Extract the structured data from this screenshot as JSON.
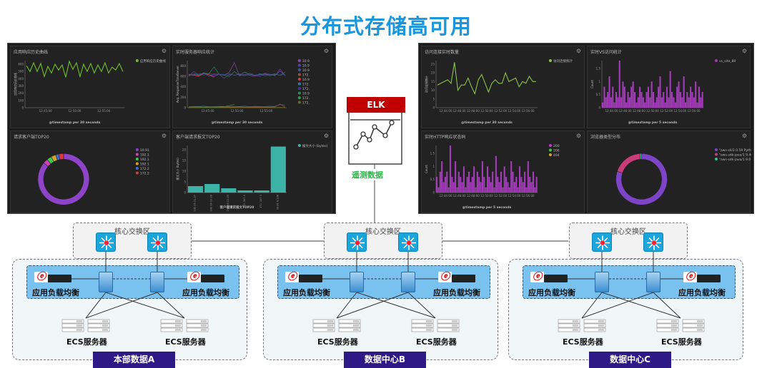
{
  "title": "分布式存储高可用",
  "elk": {
    "label": "ELK",
    "caption": "遥测数据"
  },
  "colors": {
    "title": "#1a96dc",
    "elk": "#c00000",
    "caption": "#2db34a",
    "dc_label": "#2e1a87",
    "band": "#79c1ef",
    "switch": "#1aa6da"
  },
  "dashboards": [
    {
      "panels": [
        {
          "title": "应用响应历史曲线",
          "type": "line",
          "ylabel": "应用响应历史曲线",
          "xlabel": "@timestamp per 30 seconds",
          "yticks": [
            0,
            100,
            200,
            300,
            400,
            500,
            600
          ],
          "xticks": [
            "12:45:00",
            "12:50:00",
            "12:55:00"
          ],
          "ymax": 650,
          "legend": [
            {
              "label": "应用响应历史曲线",
              "color": "#6fbf2a"
            }
          ],
          "series": [
            {
              "color": "#6fbf2a",
              "values": [
                580,
                500,
                620,
                500,
                610,
                430,
                570,
                480,
                600,
                520,
                590,
                420,
                640,
                530,
                620,
                430,
                600,
                500,
                610,
                480,
                590,
                500,
                620,
                480,
                560,
                520,
                610,
                500
              ]
            }
          ]
        },
        {
          "title": "实时服务器响应统计",
          "type": "multiline",
          "ylabel": "Avg. ResponseTimeServer",
          "xlabel": "@timestamp per 30 seconds",
          "yticks": [
            0,
            200,
            400,
            600,
            800
          ],
          "xticks": [
            "12:45:00",
            "12:50:00",
            "12:55:00"
          ],
          "ymax": 900,
          "legend": [
            {
              "label": "10.9",
              "color": "#8e44ad"
            },
            {
              "label": "10.9",
              "color": "#5b3fa8"
            },
            {
              "label": "10.9",
              "color": "#3d5aa8"
            },
            {
              "label": "172.",
              "color": "#a0522d"
            },
            {
              "label": "10.9",
              "color": "#e53935"
            },
            {
              "label": "172.",
              "color": "#2e7fa8"
            },
            {
              "label": "172.",
              "color": "#3a3a9a"
            },
            {
              "label": "10.9",
              "color": "#2e8b57"
            },
            {
              "label": "172.",
              "color": "#3c9a3c"
            },
            {
              "label": "172.",
              "color": "#6b6b2a"
            }
          ],
          "series": [
            {
              "color": "#8e44ad",
              "values": [
                620,
                640,
                610,
                650,
                630,
                600,
                640,
                620,
                680,
                860,
                610,
                640,
                620,
                600,
                650,
                630,
                640,
                620,
                700,
                620
              ]
            },
            {
              "color": "#5b3fa8",
              "values": [
                600,
                650,
                640,
                620,
                660,
                630,
                640,
                560,
                640,
                620,
                650,
                610,
                640,
                620,
                600,
                660,
                640,
                610,
                740,
                610
              ]
            },
            {
              "color": "#e53935",
              "values": [
                640,
                620,
                600,
                660,
                630,
                580
              ]
            },
            {
              "color": "#2e8b57",
              "values": [
                630,
                620,
                640,
                660,
                650,
                780,
                640,
                620,
                600,
                690,
                620,
                680,
                640,
                620,
                630,
                650,
                610,
                640,
                620,
                680
              ]
            },
            {
              "color": "#3d5aa8",
              "values": [
                610,
                690,
                620,
                670,
                600,
                650,
                640,
                630,
                650,
                620,
                640,
                610,
                660,
                620,
                640,
                610,
                630,
                650,
                620,
                640
              ]
            },
            {
              "color": "#2e7fa8",
              "values": [
                20,
                25,
                22,
                30,
                18,
                20,
                24,
                22,
                20,
                25,
                22,
                30,
                20,
                24,
                22,
                20,
                28,
                24,
                60,
                50
              ]
            },
            {
              "color": "#a0522d",
              "values": [
                10,
                12,
                15,
                10,
                20,
                12,
                10,
                14,
                12,
                10,
                15,
                12,
                10,
                14,
                12,
                10,
                12,
                15,
                70,
                10
              ]
            },
            {
              "color": "#3c9a3c",
              "values": [
                5,
                8,
                6,
                10,
                8,
                6,
                12,
                20,
                40,
                60
              ]
            },
            {
              "color": "#6b6b2a",
              "values": [
                2,
                4,
                3,
                5,
                4,
                3,
                5,
                4,
                3,
                5,
                4,
                3,
                5,
                4,
                3,
                5,
                4,
                3,
                5,
                4
              ]
            }
          ]
        },
        {
          "title": "请求客户端TOP20",
          "type": "donut",
          "legend": [
            {
              "label": "10.91",
              "color": "#8e44c8",
              "value": 86
            },
            {
              "label": "192.1",
              "color": "#d63fb8",
              "value": 3
            },
            {
              "label": "192.1",
              "color": "#3ac94a",
              "value": 3
            },
            {
              "label": "192.1",
              "color": "#d4a22e",
              "value": 3
            },
            {
              "label": "172.2",
              "color": "#3a6fd8",
              "value": 2
            },
            {
              "label": "172.2",
              "color": "#d9393f",
              "value": 3
            }
          ]
        },
        {
          "title": "客户端请求报文TOP20",
          "type": "bar",
          "ylabel": "报文大小 (bytes)",
          "xlabel": "客户端请求报文TOP20",
          "yticks": [
            0,
            5,
            10,
            15,
            20
          ],
          "ymax": 22,
          "legend": [
            {
              "label": "报文大小 (bytes)",
              "color": "#3db3a8"
            }
          ],
          "categories": [
            "192.16 21.27",
            "192.16 21.26",
            "192.16 21.25",
            "172. 247.4",
            "172. 247.3",
            "10.91 8.108"
          ],
          "values": [
            3,
            4,
            2,
            1,
            1,
            21.5
          ]
        }
      ]
    },
    {
      "panels": [
        {
          "title": "访问连接实时数量",
          "type": "line",
          "ylabel": "访问连接统计",
          "xlabel": "@timestamp per 30 seconds",
          "yticks": [
            0,
            5,
            10,
            15,
            20,
            25
          ],
          "xticks": [
            "12:44:00",
            "12:46:00",
            "12:48:00",
            "12:50:00",
            "12:52:00",
            "12:54:00",
            "12:56:00"
          ],
          "ymax": 27,
          "legend": [
            {
              "label": "访问连接统计",
              "color": "#8bc34a"
            }
          ],
          "series": [
            {
              "color": "#8bc34a",
              "values": [
                13,
                14,
                15,
                16,
                14,
                26,
                10,
                13,
                13,
                17,
                12,
                8,
                16,
                19,
                14,
                9,
                14,
                16,
                14,
                14,
                20,
                15,
                16,
                17,
                12,
                15,
                14,
                18,
                15,
                15
              ]
            }
          ]
        },
        {
          "title": "实时VS访问统计",
          "type": "hist",
          "ylabel": "Count",
          "xlabel": "@timestamp per 5 seconds",
          "yticks": [
            0,
            0.5,
            1,
            1.5
          ],
          "xticks": [
            "12:44:00",
            "12:46:00",
            "12:48:00",
            "12:50:00",
            "12:52:00",
            "12:54:00",
            "12:56:00"
          ],
          "ymax": 1.8,
          "legend": [
            {
              "label": "vs_site_80",
              "color": "#a23cb8"
            }
          ],
          "series": [
            {
              "color": "#a23cb8",
              "values": [
                0.2,
                0.8,
                0.4,
                0.6,
                1.2,
                0.4,
                0.8,
                0.2,
                0.6,
                0.4,
                1.8,
                0.4,
                1,
                0.8,
                0.2,
                0.6,
                0.4,
                0.8,
                1,
                0.6,
                0.2,
                0.4,
                0.8,
                0.6,
                0.4,
                0.2,
                0.6,
                0.8,
                0.4,
                1,
                0.6,
                0.2,
                0.4,
                0.8,
                1.2,
                0.4,
                0.6,
                0.2,
                0.8,
                0.4,
                1.4,
                0.6,
                0.4,
                0.2,
                0.8,
                1,
                0.6,
                0.4,
                1.2,
                0.2,
                0.6,
                0.4,
                0.8,
                0.6,
                0.4,
                1,
                0.2,
                0.8,
                0.4,
                0.6
              ]
            }
          ]
        },
        {
          "title": "实时HTTP响应状态码",
          "type": "hist",
          "ylabel": "Count",
          "xlabel": "@timestamp per 5 seconds",
          "yticks": [
            0,
            0.5,
            1,
            1.5
          ],
          "xticks": [
            "12:44:00",
            "12:46:00",
            "12:48:00",
            "12:50:00",
            "12:52:00",
            "12:54:00",
            "12:56:00"
          ],
          "ymax": 1.8,
          "legend": [
            {
              "label": "200",
              "color": "#c23cc8"
            },
            {
              "label": "206",
              "color": "#3ac94a"
            },
            {
              "label": "404",
              "color": "#d4a22e"
            }
          ],
          "series": [
            {
              "color": "#a23cb8",
              "values": [
                0.6,
                0.2,
                0.8,
                1.2,
                0.4,
                0.6,
                0.8,
                0.2,
                1.8,
                0.6,
                0.4,
                1.2,
                0.2,
                0.8,
                0.6,
                0.4,
                1,
                0.2,
                0.6,
                0.8,
                0.4,
                0.6,
                1,
                0.2,
                0.8,
                0.6,
                0.4,
                1.2,
                0.6,
                0.2,
                1,
                0.6,
                0.4,
                0.8,
                0.2,
                1.4,
                0.6,
                0.4,
                0.8,
                0.2,
                1,
                0.6,
                0.4,
                0.2,
                1.2,
                0.8,
                0.4,
                0.6,
                0.2,
                1,
                0.6,
                0.4,
                0.8,
                0.2,
                1.2,
                0.6,
                0.4,
                0.8,
                0.2,
                0.6
              ]
            }
          ]
        },
        {
          "title": "浏览器类型分布",
          "type": "donut",
          "legend": [
            {
              "label": "\"aws-cli/2.0.59 Pytho...",
              "color": "#7e44c8",
              "value": 80
            },
            {
              "label": "\"aws-sdk-java/1.9.40 ...",
              "color": "#c83c7a",
              "value": 19
            },
            {
              "label": "\"aws-sdk-java/1.9.0 Li...",
              "color": "#2ec98a",
              "value": 1
            }
          ]
        }
      ]
    }
  ],
  "datacenters": [
    {
      "name": "本部数据A",
      "core_label": "核心交换区",
      "lb_left": "应用负载均衡",
      "lb_right": "应用负载均衡",
      "server_left": "ECS服务器",
      "server_right": "ECS服务器"
    },
    {
      "name": "数据中心B",
      "core_label": "核心交换区",
      "lb_left": "应用负载均衡",
      "lb_right": "应用负载均衡",
      "server_left": "ECS服务器",
      "server_right": "ECS服务器"
    },
    {
      "name": "数据中心C",
      "core_label": "核心交换区",
      "lb_left": "应用负载均衡",
      "lb_right": "应用负载均衡",
      "server_left": "ECS服务器",
      "server_right": "ECS服务器"
    }
  ]
}
